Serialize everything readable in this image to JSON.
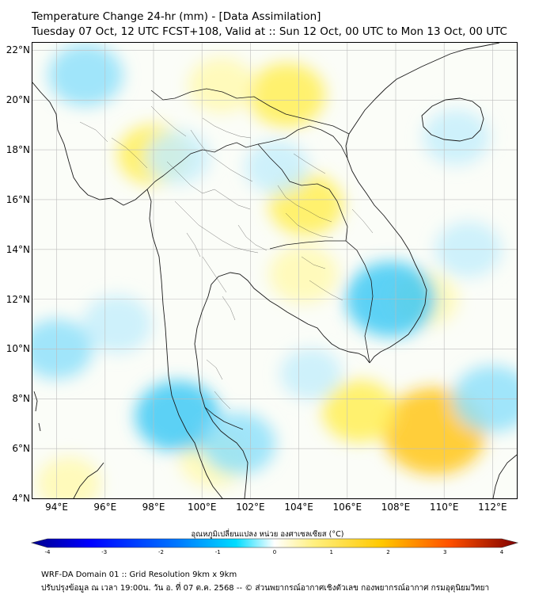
{
  "title": {
    "line1": "Temperature Change 24-hr (mm) - [Data Assimilation]",
    "line2": "Tuesday 07 Oct, 12 UTC FCST+108, Valid at :: Sun 12 Oct, 00 UTC to Mon 13 Oct, 00 UTC"
  },
  "axes": {
    "lat_ticks": [
      "22°N",
      "20°N",
      "18°N",
      "16°N",
      "14°N",
      "12°N",
      "10°N",
      "8°N",
      "6°N",
      "4°N"
    ],
    "lon_ticks": [
      "94°E",
      "96°E",
      "98°E",
      "100°E",
      "102°E",
      "104°E",
      "106°E",
      "108°E",
      "110°E",
      "112°E"
    ],
    "lon_range": [
      93,
      113
    ],
    "lat_range": [
      4,
      22.3
    ]
  },
  "colorbar": {
    "label": "อุณหภูมิเปลี่ยนแปลง หน่วย องศาเซลเซียส (°C)",
    "ticks": [
      "-4",
      "-3",
      "-2",
      "-1",
      "0",
      "1",
      "2",
      "3",
      "4"
    ],
    "range": [
      -4,
      4
    ],
    "colors": [
      "#00008f",
      "#0000ff",
      "#0078ff",
      "#00dcff",
      "#ffffff",
      "#fff080",
      "#ffc800",
      "#ff5000",
      "#7f0000"
    ]
  },
  "footer": {
    "line1": "WRF-DA Domain 01 :: Grid Resolution 9km x 9km",
    "line2": "ปรับปรุงข้อมูล ณ เวลา 19:00น. วัน อ. ที่ 07 ต.ค. 2568 -- © ส่วนพยากรณ์อากาศเชิงตัวเลข กองพยากรณ์อากาศ กรมอุตุนิยมวิทยา"
  },
  "field_blobs": [
    {
      "lon": 103.5,
      "lat": 20.2,
      "value": 0.9
    },
    {
      "lon": 100.8,
      "lat": 20.6,
      "value": 0.5
    },
    {
      "lon": 98.0,
      "lat": 17.8,
      "value": 0.7
    },
    {
      "lon": 104.3,
      "lat": 15.8,
      "value": 0.8
    },
    {
      "lon": 104.2,
      "lat": 13.0,
      "value": 0.6
    },
    {
      "lon": 109.6,
      "lat": 6.7,
      "value": 1.9
    },
    {
      "lon": 106.5,
      "lat": 7.5,
      "value": 0.8
    },
    {
      "lon": 100.5,
      "lat": 5.6,
      "value": 0.6
    },
    {
      "lon": 94.5,
      "lat": 4.6,
      "value": 0.4
    },
    {
      "lon": 109.2,
      "lat": 12.0,
      "value": 0.5
    },
    {
      "lon": 107.8,
      "lat": 12.0,
      "value": -1.4
    },
    {
      "lon": 99.0,
      "lat": 7.3,
      "value": -1.2
    },
    {
      "lon": 101.5,
      "lat": 6.2,
      "value": -0.8
    },
    {
      "lon": 112.0,
      "lat": 8.0,
      "value": -1.0
    },
    {
      "lon": 95.2,
      "lat": 21.0,
      "value": -0.8
    },
    {
      "lon": 96.5,
      "lat": 11.0,
      "value": -0.6
    },
    {
      "lon": 94.0,
      "lat": 10.0,
      "value": -0.7
    },
    {
      "lon": 99.0,
      "lat": 17.7,
      "value": -0.4
    },
    {
      "lon": 103.1,
      "lat": 17.3,
      "value": -0.4
    },
    {
      "lon": 110.5,
      "lat": 18.5,
      "value": -0.5
    },
    {
      "lon": 111.0,
      "lat": 14.0,
      "value": -0.5
    },
    {
      "lon": 104.5,
      "lat": 9.0,
      "value": -0.3
    }
  ]
}
